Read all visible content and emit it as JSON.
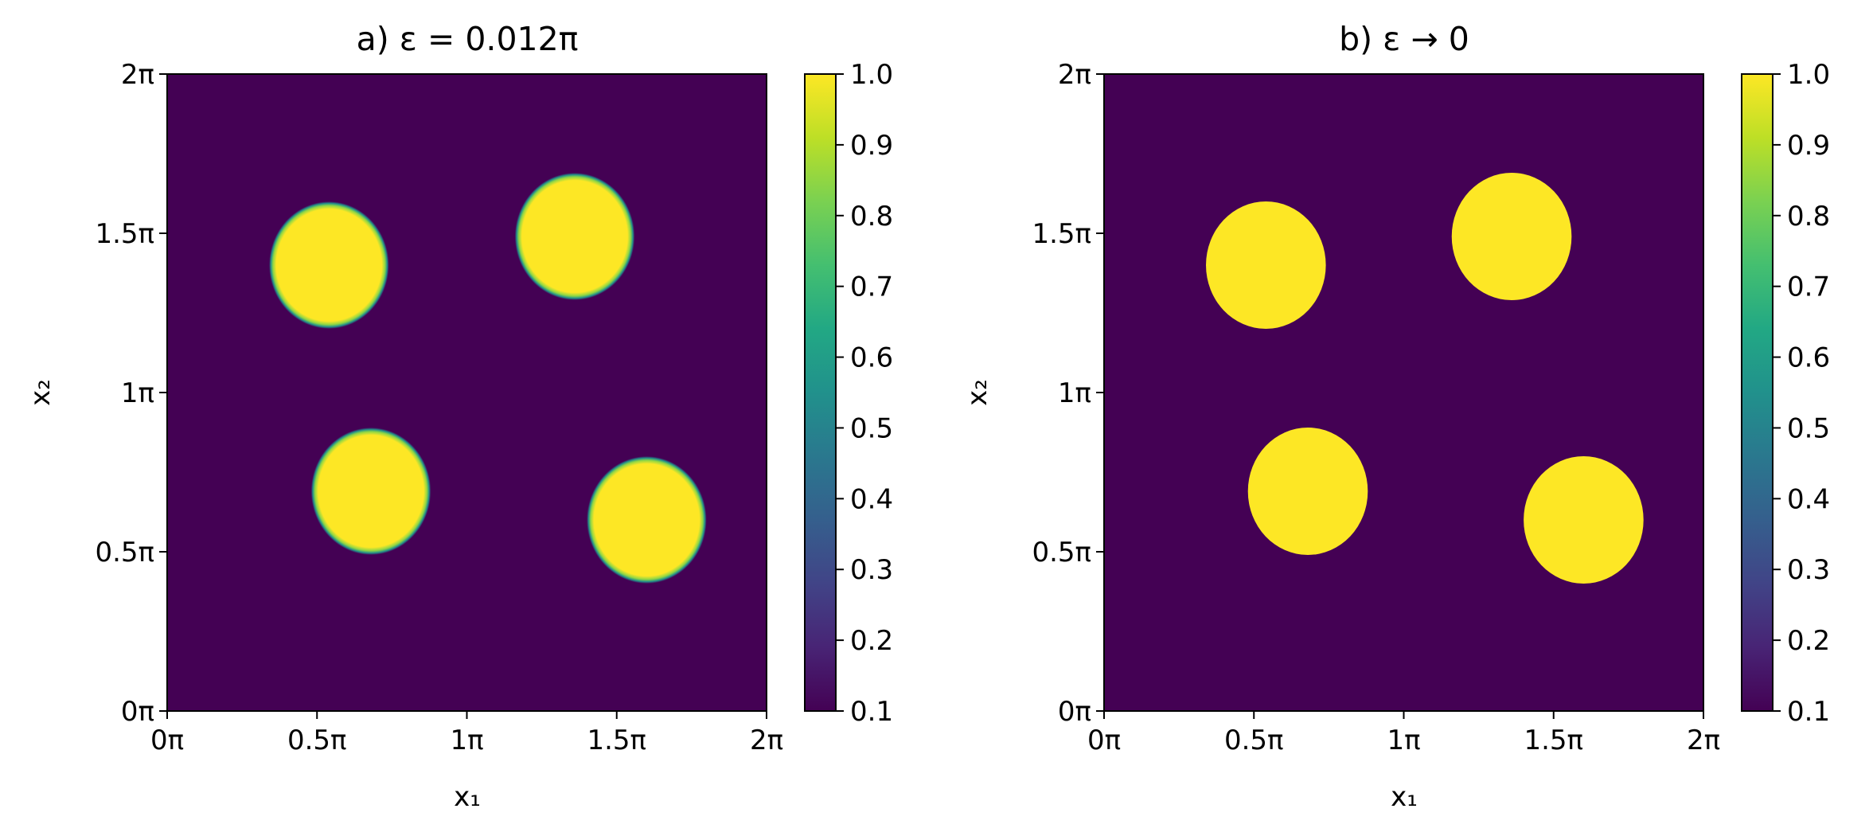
{
  "chart_data": [
    {
      "type": "heatmap",
      "title": "a) ε = 0.012π",
      "xlabel": "x₁",
      "ylabel": "x₂",
      "xlim": [
        0,
        2
      ],
      "ylim": [
        0,
        2
      ],
      "axis_unit": "π",
      "xticks": [
        {
          "value": 0,
          "label": "0π"
        },
        {
          "value": 0.5,
          "label": "0.5π"
        },
        {
          "value": 1,
          "label": "1π"
        },
        {
          "value": 1.5,
          "label": "1.5π"
        },
        {
          "value": 2,
          "label": "2π"
        }
      ],
      "yticks": [
        {
          "value": 0,
          "label": "0π"
        },
        {
          "value": 0.5,
          "label": "0.5π"
        },
        {
          "value": 1,
          "label": "1π"
        },
        {
          "value": 1.5,
          "label": "1.5π"
        },
        {
          "value": 2,
          "label": "2π"
        }
      ],
      "background_value": 0.1,
      "inclusion_value": 1.0,
      "interface_width": 0.012,
      "inclusions": [
        {
          "cx": 0.54,
          "cy": 1.4,
          "r": 0.2
        },
        {
          "cx": 1.36,
          "cy": 1.49,
          "r": 0.2
        },
        {
          "cx": 0.68,
          "cy": 0.69,
          "r": 0.2
        },
        {
          "cx": 1.6,
          "cy": 0.6,
          "r": 0.2
        }
      ],
      "colorbar": {
        "colormap": "viridis",
        "range": [
          0.1,
          1.0
        ],
        "ticks": [
          "0.1",
          "0.2",
          "0.3",
          "0.4",
          "0.5",
          "0.6",
          "0.7",
          "0.8",
          "0.9",
          "1.0"
        ]
      },
      "colors": {
        "low": "#440154",
        "high": "#fde725"
      }
    },
    {
      "type": "heatmap",
      "title": "b) ε → 0",
      "xlabel": "x₁",
      "ylabel": "x₂",
      "xlim": [
        0,
        2
      ],
      "ylim": [
        0,
        2
      ],
      "axis_unit": "π",
      "xticks": [
        {
          "value": 0,
          "label": "0π"
        },
        {
          "value": 0.5,
          "label": "0.5π"
        },
        {
          "value": 1,
          "label": "1π"
        },
        {
          "value": 1.5,
          "label": "1.5π"
        },
        {
          "value": 2,
          "label": "2π"
        }
      ],
      "yticks": [
        {
          "value": 0,
          "label": "0π"
        },
        {
          "value": 0.5,
          "label": "0.5π"
        },
        {
          "value": 1,
          "label": "1π"
        },
        {
          "value": 1.5,
          "label": "1.5π"
        },
        {
          "value": 2,
          "label": "2π"
        }
      ],
      "background_value": 0.1,
      "inclusion_value": 1.0,
      "interface_width": 0,
      "inclusions": [
        {
          "cx": 0.54,
          "cy": 1.4,
          "r": 0.2
        },
        {
          "cx": 1.36,
          "cy": 1.49,
          "r": 0.2
        },
        {
          "cx": 0.68,
          "cy": 0.69,
          "r": 0.2
        },
        {
          "cx": 1.6,
          "cy": 0.6,
          "r": 0.2
        }
      ],
      "colorbar": {
        "colormap": "viridis",
        "range": [
          0.1,
          1.0
        ],
        "ticks": [
          "0.1",
          "0.2",
          "0.3",
          "0.4",
          "0.5",
          "0.6",
          "0.7",
          "0.8",
          "0.9",
          "1.0"
        ]
      },
      "colors": {
        "low": "#440154",
        "high": "#fde725"
      }
    }
  ]
}
